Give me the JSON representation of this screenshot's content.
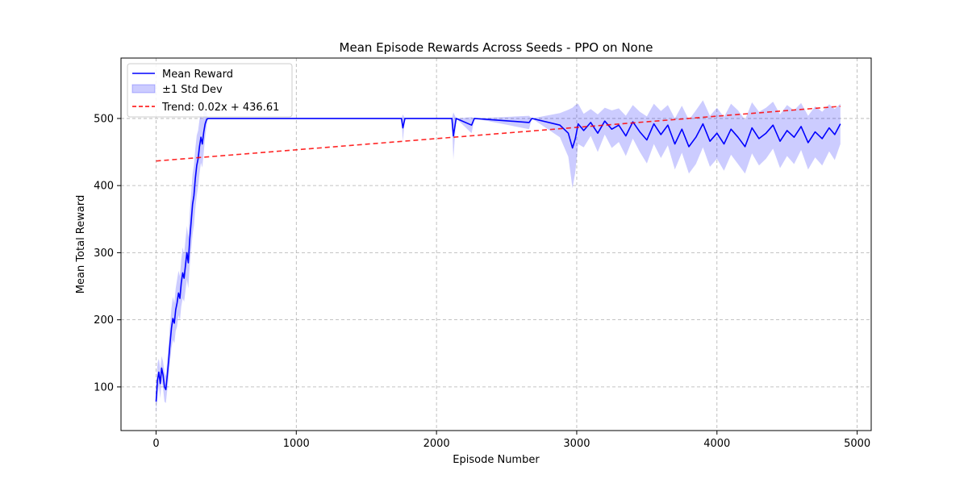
{
  "chart_data": {
    "type": "line",
    "title": "Mean Episode Rewards Across Seeds - PPO on None",
    "xlabel": "Episode Number",
    "ylabel": "Mean Total Reward",
    "xlim": [
      -250,
      5100
    ],
    "ylim": [
      35,
      590
    ],
    "xticks": [
      0,
      1000,
      2000,
      3000,
      4000,
      5000
    ],
    "yticks": [
      100,
      200,
      300,
      400,
      500
    ],
    "grid": true,
    "legend_position": "top-left",
    "legend": [
      {
        "label": "Mean Reward",
        "kind": "line",
        "color": "#0000ff"
      },
      {
        "label": "±1 Std Dev",
        "kind": "band",
        "color": "#0000ff"
      },
      {
        "label": "Trend: 0.02x + 436.61",
        "kind": "dashed",
        "color": "#ff0000"
      }
    ],
    "trend": {
      "slope": 0.0167,
      "intercept": 436.61,
      "x_start": 0,
      "x_end": 4880
    },
    "series": [
      {
        "name": "Mean Reward",
        "std_name": "±1 Std Dev",
        "color": "#0000ff",
        "points": [
          [
            0,
            78,
            18
          ],
          [
            10,
            110,
            25
          ],
          [
            20,
            122,
            20
          ],
          [
            30,
            105,
            22
          ],
          [
            40,
            128,
            18
          ],
          [
            50,
            118,
            20
          ],
          [
            60,
            100,
            22
          ],
          [
            70,
            96,
            20
          ],
          [
            80,
            118,
            22
          ],
          [
            90,
            140,
            25
          ],
          [
            100,
            165,
            28
          ],
          [
            110,
            188,
            30
          ],
          [
            120,
            202,
            32
          ],
          [
            130,
            195,
            30
          ],
          [
            140,
            215,
            32
          ],
          [
            150,
            225,
            35
          ],
          [
            160,
            240,
            33
          ],
          [
            170,
            232,
            33
          ],
          [
            180,
            255,
            35
          ],
          [
            190,
            270,
            38
          ],
          [
            200,
            262,
            35
          ],
          [
            210,
            282,
            38
          ],
          [
            220,
            300,
            40
          ],
          [
            230,
            285,
            38
          ],
          [
            240,
            320,
            40
          ],
          [
            250,
            345,
            42
          ],
          [
            260,
            372,
            45
          ],
          [
            270,
            385,
            45
          ],
          [
            280,
            410,
            45
          ],
          [
            290,
            430,
            45
          ],
          [
            300,
            440,
            42
          ],
          [
            310,
            458,
            40
          ],
          [
            320,
            472,
            38
          ],
          [
            330,
            462,
            35
          ],
          [
            340,
            480,
            30
          ],
          [
            350,
            492,
            20
          ],
          [
            360,
            498,
            10
          ],
          [
            370,
            500,
            0
          ],
          [
            1750,
            500,
            0
          ],
          [
            1760,
            486,
            20
          ],
          [
            1775,
            500,
            0
          ],
          [
            2110,
            500,
            0
          ],
          [
            2120,
            474,
            35
          ],
          [
            2140,
            500,
            0
          ],
          [
            2250,
            490,
            12
          ],
          [
            2270,
            500,
            0
          ],
          [
            2660,
            494,
            10
          ],
          [
            2680,
            500,
            0
          ],
          [
            2880,
            490,
            18
          ],
          [
            2940,
            478,
            35
          ],
          [
            2970,
            456,
            60
          ],
          [
            2990,
            470,
            50
          ],
          [
            3010,
            492,
            30
          ],
          [
            3050,
            482,
            25
          ],
          [
            3100,
            494,
            20
          ],
          [
            3150,
            478,
            28
          ],
          [
            3200,
            496,
            20
          ],
          [
            3250,
            484,
            28
          ],
          [
            3300,
            490,
            25
          ],
          [
            3350,
            474,
            30
          ],
          [
            3400,
            495,
            25
          ],
          [
            3450,
            480,
            30
          ],
          [
            3500,
            468,
            35
          ],
          [
            3550,
            492,
            30
          ],
          [
            3600,
            476,
            35
          ],
          [
            3650,
            490,
            30
          ],
          [
            3700,
            462,
            38
          ],
          [
            3750,
            484,
            35
          ],
          [
            3800,
            458,
            40
          ],
          [
            3850,
            472,
            40
          ],
          [
            3900,
            492,
            35
          ],
          [
            3950,
            466,
            38
          ],
          [
            4000,
            478,
            38
          ],
          [
            4050,
            462,
            40
          ],
          [
            4100,
            484,
            38
          ],
          [
            4150,
            472,
            40
          ],
          [
            4200,
            458,
            40
          ],
          [
            4250,
            486,
            38
          ],
          [
            4300,
            470,
            40
          ],
          [
            4350,
            478,
            38
          ],
          [
            4400,
            490,
            35
          ],
          [
            4450,
            466,
            40
          ],
          [
            4500,
            482,
            38
          ],
          [
            4550,
            472,
            40
          ],
          [
            4600,
            488,
            35
          ],
          [
            4650,
            464,
            40
          ],
          [
            4700,
            480,
            38
          ],
          [
            4750,
            470,
            40
          ],
          [
            4800,
            486,
            35
          ],
          [
            4840,
            476,
            38
          ],
          [
            4880,
            492,
            30
          ]
        ]
      }
    ]
  }
}
